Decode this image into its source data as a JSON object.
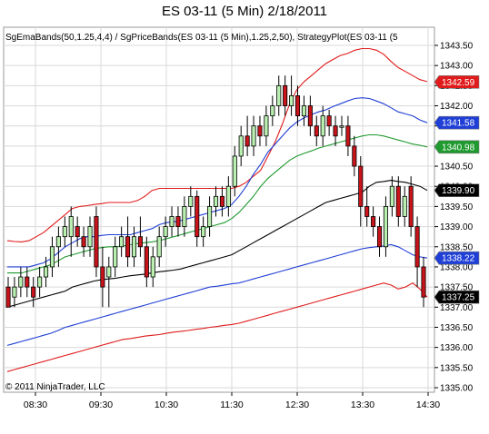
{
  "chart_data": {
    "type": "candlestick",
    "title": "ES 03-11 (5 Min)  2/18/2011",
    "legend_text": "SgEmaBands(50,1.25,4,4) / SgPriceBands(ES 03-11 (5 Min),1.25,2,50), StrategyPlot(ES 03-11 (5",
    "copyright": "© 2011 NinjaTrader, LLC",
    "x_ticks": [
      "08:30",
      "09:30",
      "10:30",
      "11:30",
      "12:30",
      "13:30",
      "14:30"
    ],
    "y_ticks": [
      "1343.50",
      "1343.00",
      "1342.50",
      "1342.00",
      "1341.50",
      "1341.00",
      "1340.50",
      "1340.00",
      "1339.50",
      "1339.00",
      "1338.50",
      "1338.00",
      "1337.50",
      "1337.00",
      "1336.50",
      "1336.00",
      "1335.50",
      "1335.00"
    ],
    "ylim": [
      1335.0,
      1343.75
    ],
    "grid": true,
    "price_labels": [
      {
        "value": "1342.59",
        "color": "#e01b1b"
      },
      {
        "value": "1341.58",
        "color": "#1f3fd6"
      },
      {
        "value": "1340.98",
        "color": "#1f9a2e"
      },
      {
        "value": "1339.90",
        "color": "#000000"
      },
      {
        "value": "1338.22",
        "color": "#1f3fd6"
      },
      {
        "value": "1337.25",
        "color": "#000000"
      }
    ],
    "series": [
      {
        "line": "upper-outer-band",
        "color": "#e01b1b",
        "values": [
          1338.65,
          1338.63,
          1338.62,
          1338.65,
          1338.75,
          1338.85,
          1339.0,
          1339.15,
          1339.3,
          1339.45,
          1339.5,
          1339.52,
          1339.55,
          1339.57,
          1339.6,
          1339.6,
          1339.6,
          1339.6,
          1339.65,
          1339.75,
          1339.9,
          1339.95,
          1339.95,
          1339.95,
          1339.95,
          1339.95,
          1339.95,
          1339.95,
          1339.95,
          1339.95,
          1339.95,
          1339.95,
          1340.0,
          1340.1,
          1340.25,
          1340.4,
          1340.75,
          1341.1,
          1341.55,
          1342.05,
          1342.4,
          1342.6,
          1342.75,
          1342.9,
          1343.05,
          1343.15,
          1343.25,
          1343.3,
          1343.38,
          1343.42,
          1343.42,
          1343.38,
          1343.28,
          1343.1,
          1342.95,
          1342.85,
          1342.75,
          1342.65,
          1342.6
        ]
      },
      {
        "line": "upper-inner-band",
        "color": "#1f3fd6",
        "values": [
          1338.0,
          1338.0,
          1338.0,
          1338.0,
          1338.05,
          1338.1,
          1338.2,
          1338.35,
          1338.5,
          1338.6,
          1338.7,
          1338.75,
          1338.75,
          1338.78,
          1338.8,
          1338.8,
          1338.8,
          1338.8,
          1338.85,
          1338.9,
          1338.95,
          1339.05,
          1339.1,
          1339.12,
          1339.15,
          1339.2,
          1339.25,
          1339.3,
          1339.35,
          1339.4,
          1339.45,
          1339.55,
          1339.75,
          1340.0,
          1340.3,
          1340.55,
          1340.85,
          1341.05,
          1341.25,
          1341.45,
          1341.6,
          1341.7,
          1341.78,
          1341.85,
          1341.9,
          1341.98,
          1342.05,
          1342.12,
          1342.18,
          1342.2,
          1342.18,
          1342.12,
          1342.05,
          1341.95,
          1341.85,
          1341.8,
          1341.75,
          1341.65,
          1341.58
        ]
      },
      {
        "line": "middle-ema",
        "color": "#1f9a2e",
        "values": [
          1337.85,
          1337.85,
          1337.85,
          1337.9,
          1337.95,
          1338.0,
          1338.05,
          1338.15,
          1338.25,
          1338.3,
          1338.35,
          1338.4,
          1338.45,
          1338.48,
          1338.5,
          1338.5,
          1338.52,
          1338.55,
          1338.58,
          1338.6,
          1338.62,
          1338.65,
          1338.7,
          1338.75,
          1338.8,
          1338.85,
          1338.9,
          1338.95,
          1339.0,
          1339.05,
          1339.1,
          1339.2,
          1339.35,
          1339.55,
          1339.75,
          1340.0,
          1340.2,
          1340.35,
          1340.5,
          1340.65,
          1340.75,
          1340.82,
          1340.88,
          1340.95,
          1341.0,
          1341.05,
          1341.1,
          1341.15,
          1341.2,
          1341.25,
          1341.28,
          1341.28,
          1341.25,
          1341.2,
          1341.15,
          1341.1,
          1341.05,
          1341.02,
          1340.98
        ]
      },
      {
        "line": "center-line",
        "color": "#000000",
        "values": [
          1337.0,
          1337.05,
          1337.1,
          1337.15,
          1337.2,
          1337.25,
          1337.3,
          1337.35,
          1337.4,
          1337.5,
          1337.55,
          1337.6,
          1337.65,
          1337.68,
          1337.7,
          1337.72,
          1337.75,
          1337.78,
          1337.8,
          1337.82,
          1337.85,
          1337.88,
          1337.9,
          1337.92,
          1337.95,
          1338.0,
          1338.05,
          1338.1,
          1338.15,
          1338.2,
          1338.25,
          1338.3,
          1338.4,
          1338.5,
          1338.6,
          1338.7,
          1338.8,
          1338.9,
          1339.0,
          1339.1,
          1339.2,
          1339.3,
          1339.4,
          1339.5,
          1339.6,
          1339.65,
          1339.7,
          1339.75,
          1339.8,
          1339.85,
          1340.0,
          1340.1,
          1340.12,
          1340.15,
          1340.12,
          1340.1,
          1340.05,
          1340.0,
          1339.9
        ]
      },
      {
        "line": "lower-inner-band",
        "color": "#1f3fd6",
        "values": [
          1336.05,
          1336.1,
          1336.15,
          1336.2,
          1336.25,
          1336.3,
          1336.35,
          1336.42,
          1336.5,
          1336.55,
          1336.6,
          1336.65,
          1336.7,
          1336.75,
          1336.8,
          1336.85,
          1336.9,
          1336.95,
          1337.0,
          1337.05,
          1337.1,
          1337.15,
          1337.2,
          1337.25,
          1337.3,
          1337.35,
          1337.4,
          1337.45,
          1337.5,
          1337.52,
          1337.55,
          1337.58,
          1337.6,
          1337.65,
          1337.7,
          1337.75,
          1337.8,
          1337.85,
          1337.9,
          1337.95,
          1338.0,
          1338.05,
          1338.1,
          1338.15,
          1338.2,
          1338.25,
          1338.3,
          1338.35,
          1338.4,
          1338.45,
          1338.48,
          1338.5,
          1338.52,
          1338.55,
          1338.5,
          1338.4,
          1338.3,
          1338.25,
          1338.22
        ]
      },
      {
        "line": "lower-outer-band",
        "color": "#e01b1b",
        "values": [
          1335.4,
          1335.45,
          1335.5,
          1335.55,
          1335.6,
          1335.65,
          1335.7,
          1335.75,
          1335.8,
          1335.85,
          1335.9,
          1335.95,
          1336.0,
          1336.05,
          1336.1,
          1336.15,
          1336.2,
          1336.22,
          1336.25,
          1336.28,
          1336.3,
          1336.32,
          1336.35,
          1336.38,
          1336.4,
          1336.42,
          1336.45,
          1336.47,
          1336.5,
          1336.52,
          1336.55,
          1336.57,
          1336.6,
          1336.65,
          1336.7,
          1336.75,
          1336.8,
          1336.85,
          1336.9,
          1336.95,
          1337.0,
          1337.05,
          1337.1,
          1337.15,
          1337.2,
          1337.25,
          1337.3,
          1337.35,
          1337.4,
          1337.45,
          1337.5,
          1337.55,
          1337.6,
          1337.55,
          1337.45,
          1337.5,
          1337.6,
          1337.45,
          1337.25
        ]
      }
    ],
    "candles": [
      {
        "o": 1337.5,
        "h": 1337.75,
        "l": 1337.0,
        "c": 1337.0
      },
      {
        "o": 1337.25,
        "h": 1337.75,
        "l": 1337.0,
        "c": 1337.5
      },
      {
        "o": 1337.5,
        "h": 1338.0,
        "l": 1337.25,
        "c": 1337.75
      },
      {
        "o": 1337.75,
        "h": 1338.0,
        "l": 1337.25,
        "c": 1337.5
      },
      {
        "o": 1337.5,
        "h": 1337.75,
        "l": 1337.0,
        "c": 1337.25
      },
      {
        "o": 1337.5,
        "h": 1338.0,
        "l": 1337.25,
        "c": 1337.75
      },
      {
        "o": 1337.75,
        "h": 1338.25,
        "l": 1337.5,
        "c": 1338.0
      },
      {
        "o": 1338.0,
        "h": 1338.75,
        "l": 1337.75,
        "c": 1338.5
      },
      {
        "o": 1338.5,
        "h": 1339.0,
        "l": 1338.0,
        "c": 1338.75
      },
      {
        "o": 1338.75,
        "h": 1339.25,
        "l": 1338.5,
        "c": 1339.0
      },
      {
        "o": 1338.75,
        "h": 1339.5,
        "l": 1338.25,
        "c": 1339.25
      },
      {
        "o": 1339.0,
        "h": 1339.25,
        "l": 1338.5,
        "c": 1338.75
      },
      {
        "o": 1338.75,
        "h": 1339.0,
        "l": 1338.25,
        "c": 1338.5
      },
      {
        "o": 1338.5,
        "h": 1339.25,
        "l": 1338.25,
        "c": 1339.0
      },
      {
        "o": 1339.25,
        "h": 1339.5,
        "l": 1337.75,
        "c": 1338.0
      },
      {
        "o": 1338.0,
        "h": 1338.5,
        "l": 1337.0,
        "c": 1337.5
      },
      {
        "o": 1337.75,
        "h": 1338.25,
        "l": 1337.0,
        "c": 1338.0
      },
      {
        "o": 1338.0,
        "h": 1338.75,
        "l": 1337.75,
        "c": 1338.5
      },
      {
        "o": 1338.5,
        "h": 1339.0,
        "l": 1338.25,
        "c": 1338.75
      },
      {
        "o": 1338.75,
        "h": 1339.25,
        "l": 1338.0,
        "c": 1338.25
      },
      {
        "o": 1338.25,
        "h": 1339.0,
        "l": 1338.0,
        "c": 1338.75
      },
      {
        "o": 1338.75,
        "h": 1339.25,
        "l": 1338.25,
        "c": 1338.5
      },
      {
        "o": 1338.5,
        "h": 1338.75,
        "l": 1337.5,
        "c": 1337.75
      },
      {
        "o": 1337.75,
        "h": 1338.5,
        "l": 1337.5,
        "c": 1338.25
      },
      {
        "o": 1338.25,
        "h": 1339.0,
        "l": 1338.0,
        "c": 1338.75
      },
      {
        "o": 1338.75,
        "h": 1339.25,
        "l": 1338.5,
        "c": 1339.0
      },
      {
        "o": 1339.0,
        "h": 1339.5,
        "l": 1338.75,
        "c": 1339.25
      },
      {
        "o": 1339.25,
        "h": 1339.5,
        "l": 1338.75,
        "c": 1339.0
      },
      {
        "o": 1339.0,
        "h": 1339.75,
        "l": 1338.75,
        "c": 1339.5
      },
      {
        "o": 1339.5,
        "h": 1340.0,
        "l": 1339.25,
        "c": 1339.75
      },
      {
        "o": 1339.75,
        "h": 1339.9,
        "l": 1338.5,
        "c": 1338.75
      },
      {
        "o": 1338.75,
        "h": 1339.25,
        "l": 1338.5,
        "c": 1339.0
      },
      {
        "o": 1339.0,
        "h": 1339.75,
        "l": 1338.75,
        "c": 1339.5
      },
      {
        "o": 1339.5,
        "h": 1340.0,
        "l": 1339.25,
        "c": 1339.75
      },
      {
        "o": 1339.75,
        "h": 1340.0,
        "l": 1339.25,
        "c": 1339.5
      },
      {
        "o": 1339.5,
        "h": 1340.25,
        "l": 1339.25,
        "c": 1340.0
      },
      {
        "o": 1340.0,
        "h": 1341.0,
        "l": 1339.75,
        "c": 1340.75
      },
      {
        "o": 1340.75,
        "h": 1341.5,
        "l": 1340.5,
        "c": 1341.25
      },
      {
        "o": 1341.25,
        "h": 1341.75,
        "l": 1340.75,
        "c": 1341.0
      },
      {
        "o": 1341.0,
        "h": 1341.75,
        "l": 1340.75,
        "c": 1341.5
      },
      {
        "o": 1341.5,
        "h": 1341.75,
        "l": 1341.0,
        "c": 1341.25
      },
      {
        "o": 1341.25,
        "h": 1342.0,
        "l": 1341.0,
        "c": 1341.75
      },
      {
        "o": 1341.75,
        "h": 1342.25,
        "l": 1341.5,
        "c": 1342.0
      },
      {
        "o": 1342.0,
        "h": 1342.75,
        "l": 1341.75,
        "c": 1342.5
      },
      {
        "o": 1342.5,
        "h": 1342.75,
        "l": 1341.75,
        "c": 1342.0
      },
      {
        "o": 1342.0,
        "h": 1342.75,
        "l": 1341.75,
        "c": 1342.25
      },
      {
        "o": 1342.25,
        "h": 1342.5,
        "l": 1341.5,
        "c": 1341.75
      },
      {
        "o": 1341.75,
        "h": 1342.25,
        "l": 1341.5,
        "c": 1342.0
      },
      {
        "o": 1342.0,
        "h": 1342.25,
        "l": 1341.25,
        "c": 1341.5
      },
      {
        "o": 1341.5,
        "h": 1341.75,
        "l": 1341.0,
        "c": 1341.25
      },
      {
        "o": 1341.25,
        "h": 1342.0,
        "l": 1341.0,
        "c": 1341.75
      },
      {
        "o": 1341.75,
        "h": 1341.9,
        "l": 1341.25,
        "c": 1341.5
      },
      {
        "o": 1341.5,
        "h": 1341.75,
        "l": 1341.0,
        "c": 1341.25
      },
      {
        "o": 1341.5,
        "h": 1341.75,
        "l": 1341.25,
        "c": 1341.5
      },
      {
        "o": 1341.5,
        "h": 1341.75,
        "l": 1340.75,
        "c": 1341.0
      },
      {
        "o": 1341.0,
        "h": 1341.25,
        "l": 1340.25,
        "c": 1340.5
      },
      {
        "o": 1340.5,
        "h": 1340.75,
        "l": 1339.0,
        "c": 1339.5
      },
      {
        "o": 1339.5,
        "h": 1340.0,
        "l": 1339.0,
        "c": 1339.25
      },
      {
        "o": 1339.25,
        "h": 1339.5,
        "l": 1338.75,
        "c": 1339.0
      },
      {
        "o": 1339.0,
        "h": 1339.25,
        "l": 1338.25,
        "c": 1338.5
      },
      {
        "o": 1338.5,
        "h": 1339.75,
        "l": 1338.25,
        "c": 1339.5
      },
      {
        "o": 1339.5,
        "h": 1340.25,
        "l": 1339.25,
        "c": 1340.0
      },
      {
        "o": 1340.0,
        "h": 1340.25,
        "l": 1339.0,
        "c": 1339.25
      },
      {
        "o": 1339.25,
        "h": 1340.0,
        "l": 1339.0,
        "c": 1339.75
      },
      {
        "o": 1340.0,
        "h": 1340.25,
        "l": 1338.75,
        "c": 1339.0
      },
      {
        "o": 1339.0,
        "h": 1339.25,
        "l": 1337.5,
        "c": 1338.0
      },
      {
        "o": 1338.0,
        "h": 1338.25,
        "l": 1337.0,
        "c": 1337.25
      }
    ]
  }
}
